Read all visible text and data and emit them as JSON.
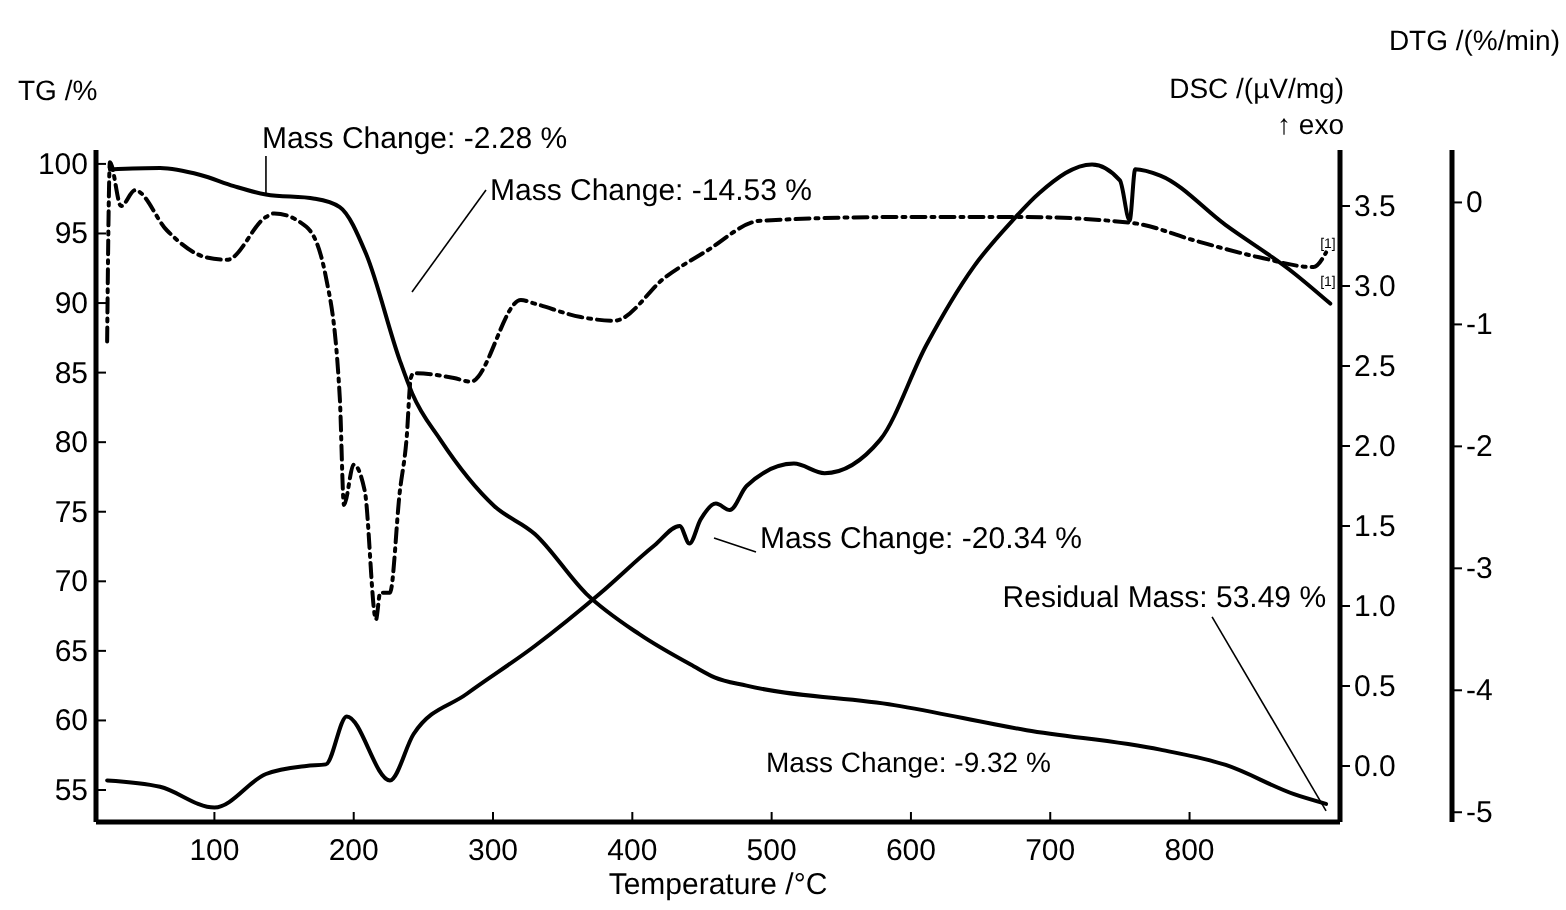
{
  "chart_data": {
    "type": "line",
    "xlabel": "Temperature /°C",
    "ylabel": "TG /%",
    "y2label": "DSC /(µV/mg)",
    "y3label": "DTG /(%/min)",
    "xlim": [
      15,
      908
    ],
    "xticks": [
      100,
      200,
      300,
      400,
      500,
      600,
      700,
      800
    ],
    "ylim": [
      52.7,
      101
    ],
    "yticks": [
      55,
      60,
      65,
      70,
      75,
      80,
      85,
      90,
      95,
      100
    ],
    "y2lim": [
      -0.35,
      3.85
    ],
    "y2ticks": [
      {
        "value": 0,
        "label": "0.0"
      },
      {
        "value": 0.5,
        "label": "0.5"
      },
      {
        "value": 1,
        "label": "1.0"
      },
      {
        "value": 1.5,
        "label": "1.5"
      },
      {
        "value": 2,
        "label": "2.0"
      },
      {
        "value": 2.5,
        "label": "2.5"
      },
      {
        "value": 3,
        "label": "3.0"
      },
      {
        "value": 3.5,
        "label": "3.5"
      }
    ],
    "y3lim": [
      -5.08,
      0.43
    ],
    "y3ticks": [
      0,
      -1,
      -2,
      -3,
      -4,
      -5
    ],
    "grid": false,
    "marker": "none",
    "series": [
      {
        "color": "#000000",
        "line_style": "solid",
        "axis": "y",
        "x": [
          25,
          61,
          90,
          114,
          137,
          172,
          190,
          209,
          233,
          242,
          262,
          301,
          330,
          367,
          405,
          444,
          459,
          482,
          588,
          683,
          779,
          826,
          875,
          898
        ],
        "values": [
          99.6,
          99.7,
          99.2,
          98.4,
          97.8,
          97.5,
          96.9,
          93.5,
          85.9,
          83.5,
          80.2,
          75.4,
          73.4,
          69.1,
          66.2,
          63.9,
          63.1,
          62.5,
          61.1,
          59.3,
          57.9,
          56.8,
          54.7,
          54.0
        ]
      },
      {
        "color": "#000000",
        "line_style": "solid",
        "axis": "y2",
        "x": [
          23,
          61,
          100,
          137,
          166,
          180,
          195,
          226,
          243,
          281,
          330,
          377,
          416,
          434,
          441,
          449,
          460,
          470,
          482,
          516,
          538,
          578,
          611,
          645,
          673,
          692,
          730,
          750,
          757,
          761,
          779,
          826,
          875,
          901
        ],
        "values": [
          -0.09,
          -0.13,
          -0.26,
          -0.05,
          0.0,
          0.01,
          0.31,
          -0.09,
          0.2,
          0.45,
          0.75,
          1.08,
          1.38,
          1.5,
          1.39,
          1.54,
          1.64,
          1.6,
          1.75,
          1.89,
          1.83,
          2.04,
          2.63,
          3.12,
          3.41,
          3.58,
          3.76,
          3.66,
          3.41,
          3.73,
          3.69,
          3.38,
          3.08,
          2.89
        ]
      },
      {
        "color": "#000000",
        "line_style": "dashdot",
        "axis": "y3",
        "x": [
          23,
          25,
          33,
          43,
          66,
          94,
          109,
          137,
          143,
          166,
          180,
          190,
          193,
          200,
          208,
          216,
          219,
          226,
          233,
          238,
          241,
          243,
          272,
          284,
          320,
          330,
          363,
          387,
          424,
          453,
          492,
          588,
          683,
          760,
          803,
          850,
          889,
          898
        ],
        "values": [
          -1.14,
          0.33,
          -0.03,
          0.1,
          -0.23,
          -0.45,
          -0.47,
          -0.12,
          -0.09,
          -0.2,
          -0.61,
          -1.6,
          -2.48,
          -2.15,
          -2.37,
          -3.42,
          -3.2,
          -3.2,
          -2.38,
          -1.93,
          -1.44,
          -1.4,
          -1.44,
          -1.47,
          -0.8,
          -0.83,
          -0.94,
          -0.97,
          -0.61,
          -0.4,
          -0.15,
          -0.12,
          -0.12,
          -0.17,
          -0.31,
          -0.45,
          -0.53,
          -0.41
        ]
      }
    ],
    "annotations": [
      {
        "text": "Mass Change: -2.28 %",
        "x": 137,
        "y": 97.7
      },
      "Mass Change: -14.53 %",
      "Mass Change: -20.34 %",
      {
        "text": "Residual Mass: 53.49 %",
        "x": 898,
        "y": 53.5
      },
      "Mass Change: -9.32 %",
      "↑ exo",
      "[1]",
      "[1]"
    ]
  }
}
